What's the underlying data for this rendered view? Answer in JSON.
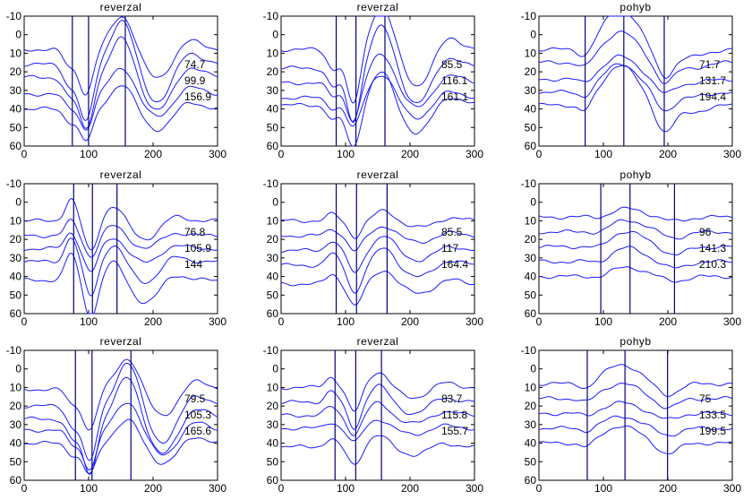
{
  "colors": {
    "waveform": "#1a1aff",
    "marker": "#000080",
    "axes": "#000000",
    "background": "#ffffff"
  },
  "chart_data": [
    {
      "type": "line",
      "title": "reverzal",
      "xlim": [
        0,
        300
      ],
      "ylim": [
        -10,
        60
      ],
      "y_inverted": true,
      "xticks": [
        "0",
        "100",
        "200",
        "300"
      ],
      "yticks": [
        "-10",
        "0",
        "10",
        "20",
        "30",
        "40",
        "50",
        "60"
      ],
      "markers_x": [
        74.7,
        99.9,
        156.9
      ],
      "labels": [
        "74.7",
        "99.9",
        "156.9"
      ],
      "baselines": [
        8,
        16,
        23,
        32,
        40
      ],
      "shape": "rev_a"
    },
    {
      "type": "line",
      "title": "reverzal",
      "xlim": [
        0,
        300
      ],
      "ylim": [
        -10,
        60
      ],
      "y_inverted": true,
      "xticks": [
        "0",
        "100",
        "200",
        "300"
      ],
      "yticks": [
        "-10",
        "0",
        "10",
        "20",
        "30",
        "40",
        "50",
        "60"
      ],
      "markers_x": [
        85.5,
        116.1,
        161.1
      ],
      "labels": [
        "85.5",
        "116.1",
        "161.1"
      ],
      "baselines": [
        8,
        18,
        26,
        34,
        38
      ],
      "shape": "rev_a"
    },
    {
      "type": "line",
      "title": "pohyb",
      "xlim": [
        0,
        300
      ],
      "ylim": [
        -10,
        60
      ],
      "y_inverted": true,
      "xticks": [
        "0",
        "100",
        "200",
        "300"
      ],
      "yticks": [
        "-10",
        "0",
        "10",
        "20",
        "30",
        "40",
        "50",
        "60"
      ],
      "markers_x": [
        71.7,
        131.7,
        194.4
      ],
      "labels": [
        "71.7",
        "131.7",
        "194.4"
      ],
      "baselines": [
        8,
        15,
        24,
        31,
        38
      ],
      "shape": "mot_a"
    },
    {
      "type": "line",
      "title": "reverzal",
      "xlim": [
        0,
        300
      ],
      "ylim": [
        -10,
        60
      ],
      "y_inverted": true,
      "xticks": [
        "0",
        "100",
        "200",
        "300"
      ],
      "yticks": [
        "-10",
        "0",
        "10",
        "20",
        "30",
        "40",
        "50",
        "60"
      ],
      "markers_x": [
        76.8,
        105.9,
        144
      ],
      "labels": [
        "76.8",
        "105.9",
        "144"
      ],
      "baselines": [
        10,
        18,
        25,
        32,
        42
      ],
      "shape": "rev_b"
    },
    {
      "type": "line",
      "title": "reverzal",
      "xlim": [
        0,
        300
      ],
      "ylim": [
        -10,
        60
      ],
      "y_inverted": true,
      "xticks": [
        "0",
        "100",
        "200",
        "300"
      ],
      "yticks": [
        "-10",
        "0",
        "10",
        "20",
        "30",
        "40",
        "50",
        "60"
      ],
      "markers_x": [
        85.5,
        117,
        164.4
      ],
      "labels": [
        "85.5",
        "117",
        "164.4"
      ],
      "baselines": [
        10,
        18,
        26,
        34,
        44
      ],
      "shape": "rev_c"
    },
    {
      "type": "line",
      "title": "pohyb",
      "xlim": [
        0,
        300
      ],
      "ylim": [
        -10,
        60
      ],
      "y_inverted": true,
      "xticks": [
        "0",
        "100",
        "200",
        "300"
      ],
      "yticks": [
        "-10",
        "0",
        "10",
        "20",
        "30",
        "40",
        "50",
        "60"
      ],
      "markers_x": [
        96,
        141.3,
        210.3
      ],
      "labels": [
        "96",
        "141.3",
        "210.3"
      ],
      "baselines": [
        8,
        16,
        24,
        32,
        40
      ],
      "shape": "mot_b"
    },
    {
      "type": "line",
      "title": "reverzal",
      "xlim": [
        0,
        300
      ],
      "ylim": [
        -10,
        60
      ],
      "y_inverted": true,
      "xticks": [
        "0",
        "100",
        "200",
        "300"
      ],
      "yticks": [
        "-10",
        "0",
        "10",
        "20",
        "30",
        "40",
        "50",
        "60"
      ],
      "markers_x": [
        79.5,
        105.3,
        165.6
      ],
      "labels": [
        "79.5",
        "105.3",
        "165.6"
      ],
      "baselines": [
        11,
        20,
        27,
        33,
        40
      ],
      "shape": "rev_a"
    },
    {
      "type": "line",
      "title": "reverzal",
      "xlim": [
        0,
        300
      ],
      "ylim": [
        -10,
        60
      ],
      "y_inverted": true,
      "xticks": [
        "0",
        "100",
        "200",
        "300"
      ],
      "yticks": [
        "-10",
        "0",
        "10",
        "20",
        "30",
        "40",
        "50",
        "60"
      ],
      "markers_x": [
        83.7,
        115.8,
        155.7
      ],
      "labels": [
        "83.7",
        "115.8",
        "155.7"
      ],
      "baselines": [
        10,
        18,
        25,
        32,
        42
      ],
      "shape": "rev_c"
    },
    {
      "type": "line",
      "title": "pohyb",
      "xlim": [
        0,
        300
      ],
      "ylim": [
        -10,
        60
      ],
      "y_inverted": true,
      "xticks": [
        "0",
        "100",
        "200",
        "300"
      ],
      "yticks": [
        "-10",
        "0",
        "10",
        "20",
        "30",
        "40",
        "50",
        "60"
      ],
      "markers_x": [
        75,
        133.5,
        199.5
      ],
      "labels": [
        "75",
        "133.5",
        "199.5"
      ],
      "baselines": [
        8,
        16,
        24,
        32,
        40
      ],
      "shape": "mot_c"
    }
  ]
}
